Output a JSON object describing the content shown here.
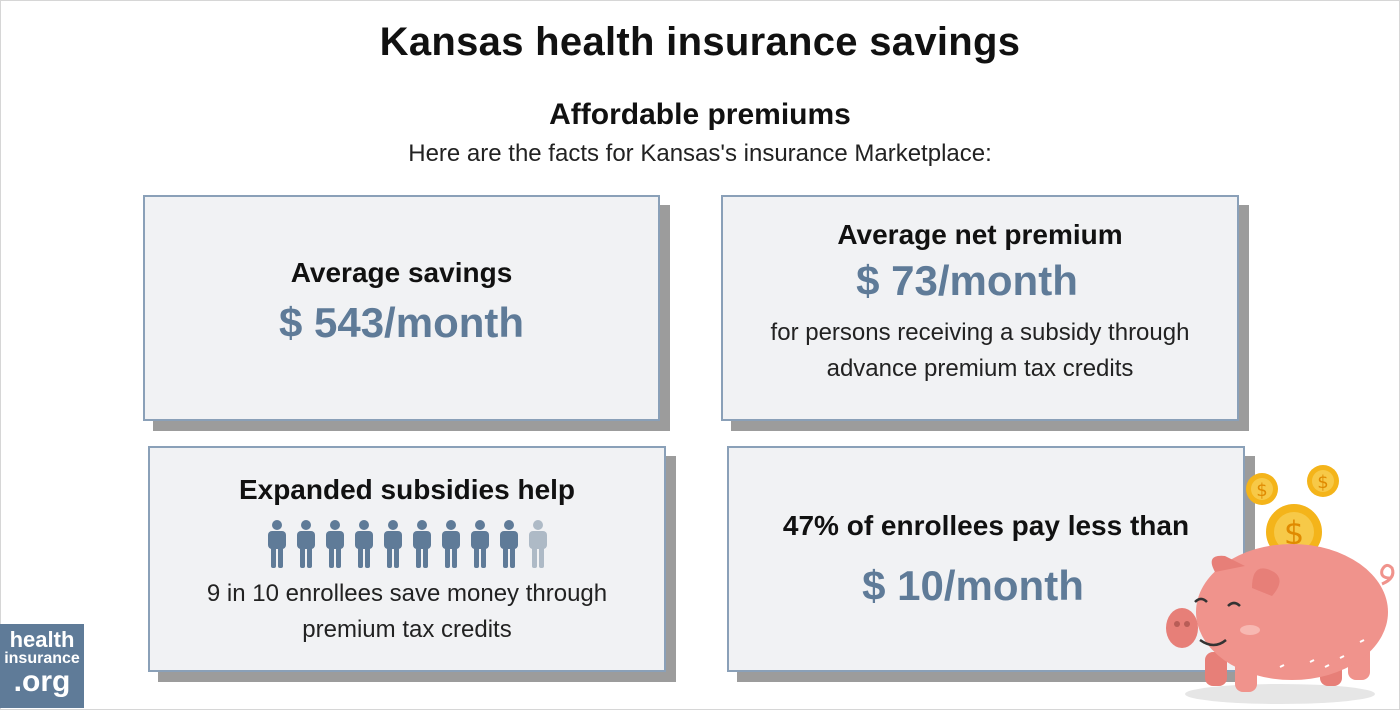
{
  "header": {
    "title": "Kansas health insurance savings",
    "subtitle": "Affordable premiums",
    "intro": "Here are the facts for Kansas's insurance Marketplace:"
  },
  "cards": {
    "savings": {
      "heading": "Average savings",
      "value": "$ 543/month"
    },
    "net_premium": {
      "heading": "Average net premium",
      "value": "$ 73/month",
      "text_line1": "for persons receiving a subsidy through",
      "text_line2": "advance premium tax credits"
    },
    "subsidies": {
      "heading": "Expanded subsidies help",
      "people_total": 10,
      "people_highlighted": 9,
      "text_line1": "9 in 10 enrollees save money through",
      "text_line2": "premium tax credits"
    },
    "enrollees": {
      "heading": "47% of enrollees pay less than",
      "value": "$ 10/month"
    }
  },
  "logo": {
    "line1": "health",
    "line2": "insurance",
    "line3": ".org"
  },
  "colors": {
    "accent": "#5f7b98",
    "card_bg": "#f1f2f4",
    "card_border": "#8aa0b8",
    "person_active": "#5f7b98",
    "person_inactive": "#aebac6",
    "pig": "#f0938c",
    "coin": "#f4b41a"
  },
  "icons": {
    "person": "person-icon",
    "pig": "piggy-bank-icon",
    "coin": "dollar-coin-icon"
  }
}
